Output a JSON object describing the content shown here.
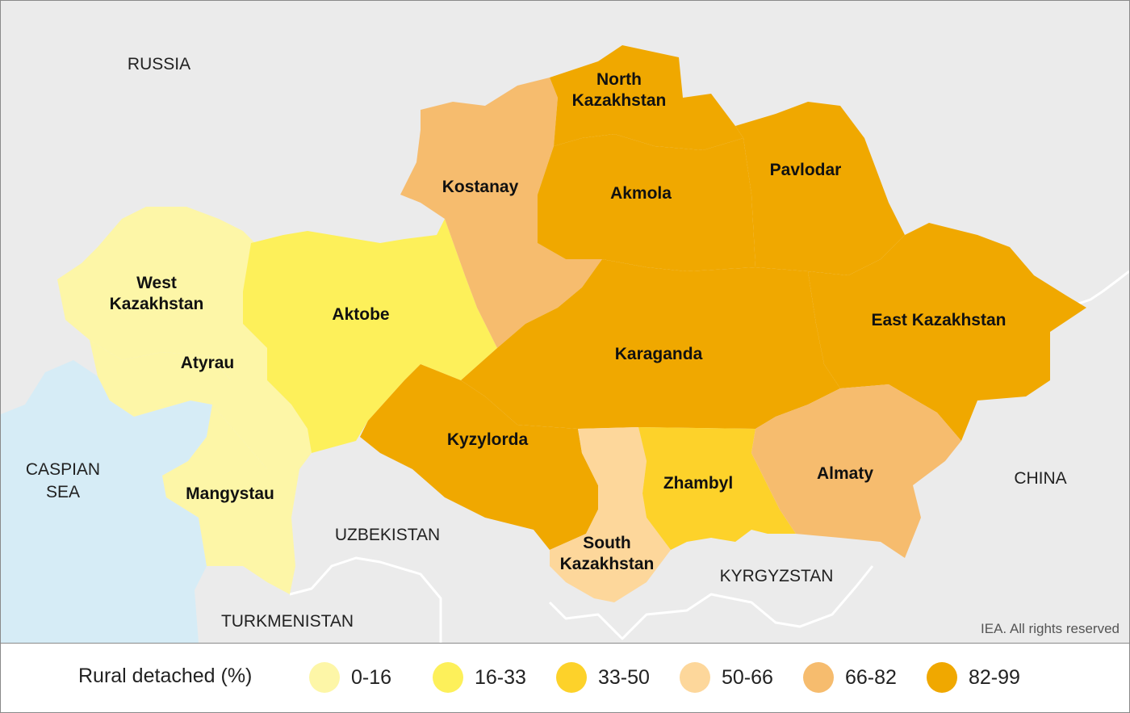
{
  "countries": {
    "russia": "RUSSIA",
    "caspian_line1": "CASPIAN",
    "caspian_line2": "SEA",
    "uzbekistan": "UZBEKISTAN",
    "turkmenistan": "TURKMENISTAN",
    "kyrgyzstan": "KYRGYZSTAN",
    "china": "CHINA"
  },
  "regions": {
    "north_kazakhstan": {
      "line1": "North",
      "line2": "Kazakhstan",
      "category": "82-99"
    },
    "kostanay": {
      "name": "Kostanay",
      "category": "66-82"
    },
    "akmola": {
      "name": "Akmola",
      "category": "82-99"
    },
    "pavlodar": {
      "name": "Pavlodar",
      "category": "82-99"
    },
    "west_kazakhstan": {
      "line1": "West",
      "line2": "Kazakhstan",
      "category": "0-16"
    },
    "aktobe": {
      "name": "Aktobe",
      "category": "16-33"
    },
    "atyrau": {
      "name": "Atyrau",
      "category": "0-16"
    },
    "karaganda": {
      "name": "Karaganda",
      "category": "82-99"
    },
    "east_kazakhstan": {
      "name": "East Kazakhstan",
      "category": "82-99"
    },
    "kyzylorda": {
      "name": "Kyzylorda",
      "category": "82-99"
    },
    "mangystau": {
      "name": "Mangystau",
      "category": "0-16"
    },
    "zhambyl": {
      "name": "Zhambyl",
      "category": "33-50"
    },
    "almaty": {
      "name": "Almaty",
      "category": "66-82"
    },
    "south_kazakhstan": {
      "line1": "South",
      "line2": "Kazakhstan",
      "category": "50-66"
    }
  },
  "credit": "IEA. All rights reserved",
  "legend": {
    "title": "Rural detached (%)",
    "items": [
      {
        "label": "0-16",
        "color": "#fdf6a7"
      },
      {
        "label": "16-33",
        "color": "#fdf05a"
      },
      {
        "label": "33-50",
        "color": "#fdd22a"
      },
      {
        "label": "50-66",
        "color": "#fdd79b"
      },
      {
        "label": "66-82",
        "color": "#f6bc6e"
      },
      {
        "label": "82-99",
        "color": "#f0a800"
      }
    ]
  },
  "colors": {
    "background_land": "#ebebeb",
    "sea": "#d6ecf6"
  }
}
